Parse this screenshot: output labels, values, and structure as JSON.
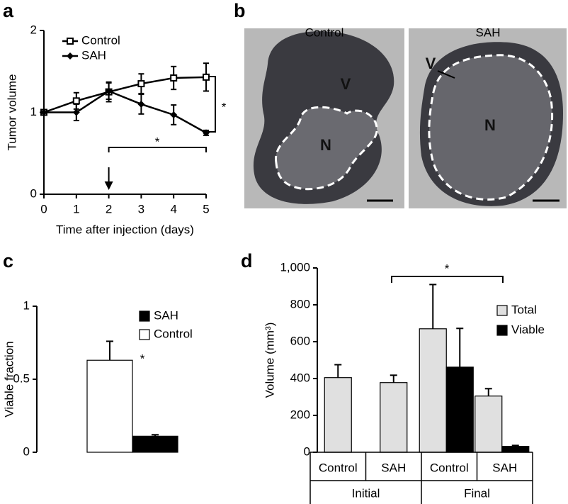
{
  "panels": [
    "a",
    "b",
    "c",
    "d"
  ],
  "chart_data": [
    {
      "type": "line",
      "x_label": "Time after injection (days)",
      "y_label": "Tumor volume",
      "x": [
        0,
        1,
        2,
        3,
        4,
        5
      ],
      "xlim": [
        0,
        5
      ],
      "xticks": [
        0,
        1,
        2,
        3,
        4,
        5
      ],
      "ylim": [
        0,
        2
      ],
      "yticks": [
        0,
        1,
        2
      ],
      "series": [
        {
          "name": "Control",
          "color": "#000000",
          "marker": "square-open",
          "values": [
            1,
            1.14,
            1.25,
            1.35,
            1.42,
            1.43
          ],
          "errors": [
            0,
            0.1,
            0.12,
            0.12,
            0.14,
            0.17
          ]
        },
        {
          "name": "SAH",
          "color": "#000000",
          "marker": "diamond",
          "values": [
            1,
            1,
            1.26,
            1.1,
            0.97,
            0.75
          ],
          "errors": [
            0,
            0.1,
            0.1,
            0.12,
            0.12,
            0.03
          ]
        }
      ],
      "annotations": [
        "*",
        "*"
      ]
    },
    {
      "type": "bar",
      "y_label": "Viable fraction",
      "categories": [
        null
      ],
      "ylim": [
        0,
        1
      ],
      "yticks": [
        0,
        0.5,
        1
      ],
      "series": [
        {
          "name": "SAH",
          "color": "#000000",
          "values": [
            0.11
          ],
          "errors": [
            0.01
          ]
        },
        {
          "name": "Control",
          "color": "#ffffff",
          "values": [
            0.63
          ],
          "errors": [
            0.13
          ]
        }
      ],
      "annotations": [
        "*"
      ]
    },
    {
      "type": "bar",
      "y_label": "Volume (mm³)",
      "categories": [
        "Control",
        "SAH",
        "Control",
        "SAH"
      ],
      "groups": [
        "Initial",
        "Final"
      ],
      "ylim": [
        0,
        1000
      ],
      "yticks": [
        0,
        200,
        400,
        600,
        800,
        {
          "value": 1000,
          "label": "1,000"
        }
      ],
      "series": [
        {
          "name": "Total",
          "color": "#e0e0e0",
          "values": [
            405,
            378,
            670,
            305
          ],
          "errors": [
            70,
            40,
            240,
            40
          ]
        },
        {
          "name": "Viable",
          "color": "#000000",
          "values": [
            null,
            null,
            462,
            32
          ],
          "errors": [
            null,
            null,
            210,
            5
          ]
        }
      ],
      "annotations": [
        "*"
      ]
    }
  ],
  "images": [
    {
      "title": "Control",
      "labels": [
        "V",
        "N"
      ]
    },
    {
      "title": "SAH",
      "labels": [
        "V",
        "N"
      ]
    }
  ]
}
